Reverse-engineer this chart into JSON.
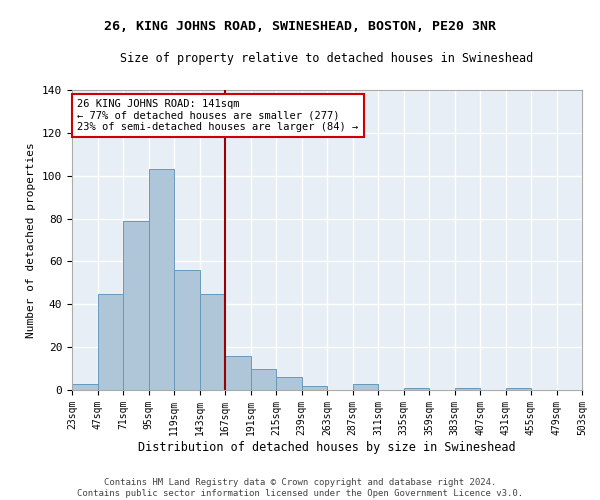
{
  "title": "26, KING JOHNS ROAD, SWINESHEAD, BOSTON, PE20 3NR",
  "subtitle": "Size of property relative to detached houses in Swineshead",
  "xlabel": "Distribution of detached houses by size in Swineshead",
  "ylabel": "Number of detached properties",
  "bar_values": [
    3,
    45,
    79,
    103,
    56,
    45,
    16,
    10,
    6,
    2,
    0,
    3,
    0,
    1,
    0,
    1,
    0,
    1,
    0,
    0
  ],
  "bin_labels": [
    "23sqm",
    "47sqm",
    "71sqm",
    "95sqm",
    "119sqm",
    "143sqm",
    "167sqm",
    "191sqm",
    "215sqm",
    "239sqm",
    "263sqm",
    "287sqm",
    "311sqm",
    "335sqm",
    "359sqm",
    "383sqm",
    "407sqm",
    "431sqm",
    "455sqm",
    "479sqm",
    "503sqm"
  ],
  "bar_color": "#aec6d8",
  "bar_edge_color": "#6699bb",
  "background_color": "#e8eef5",
  "grid_color": "#ffffff",
  "property_line_x": 5.5,
  "annotation_text": "26 KING JOHNS ROAD: 141sqm\n← 77% of detached houses are smaller (277)\n23% of semi-detached houses are larger (84) →",
  "annotation_box_color": "#ffffff",
  "annotation_box_edge": "#cc0000",
  "vline_color": "#990000",
  "footer_line1": "Contains HM Land Registry data © Crown copyright and database right 2024.",
  "footer_line2": "Contains public sector information licensed under the Open Government Licence v3.0.",
  "ylim": [
    0,
    140
  ],
  "yticks": [
    0,
    20,
    40,
    60,
    80,
    100,
    120,
    140
  ]
}
